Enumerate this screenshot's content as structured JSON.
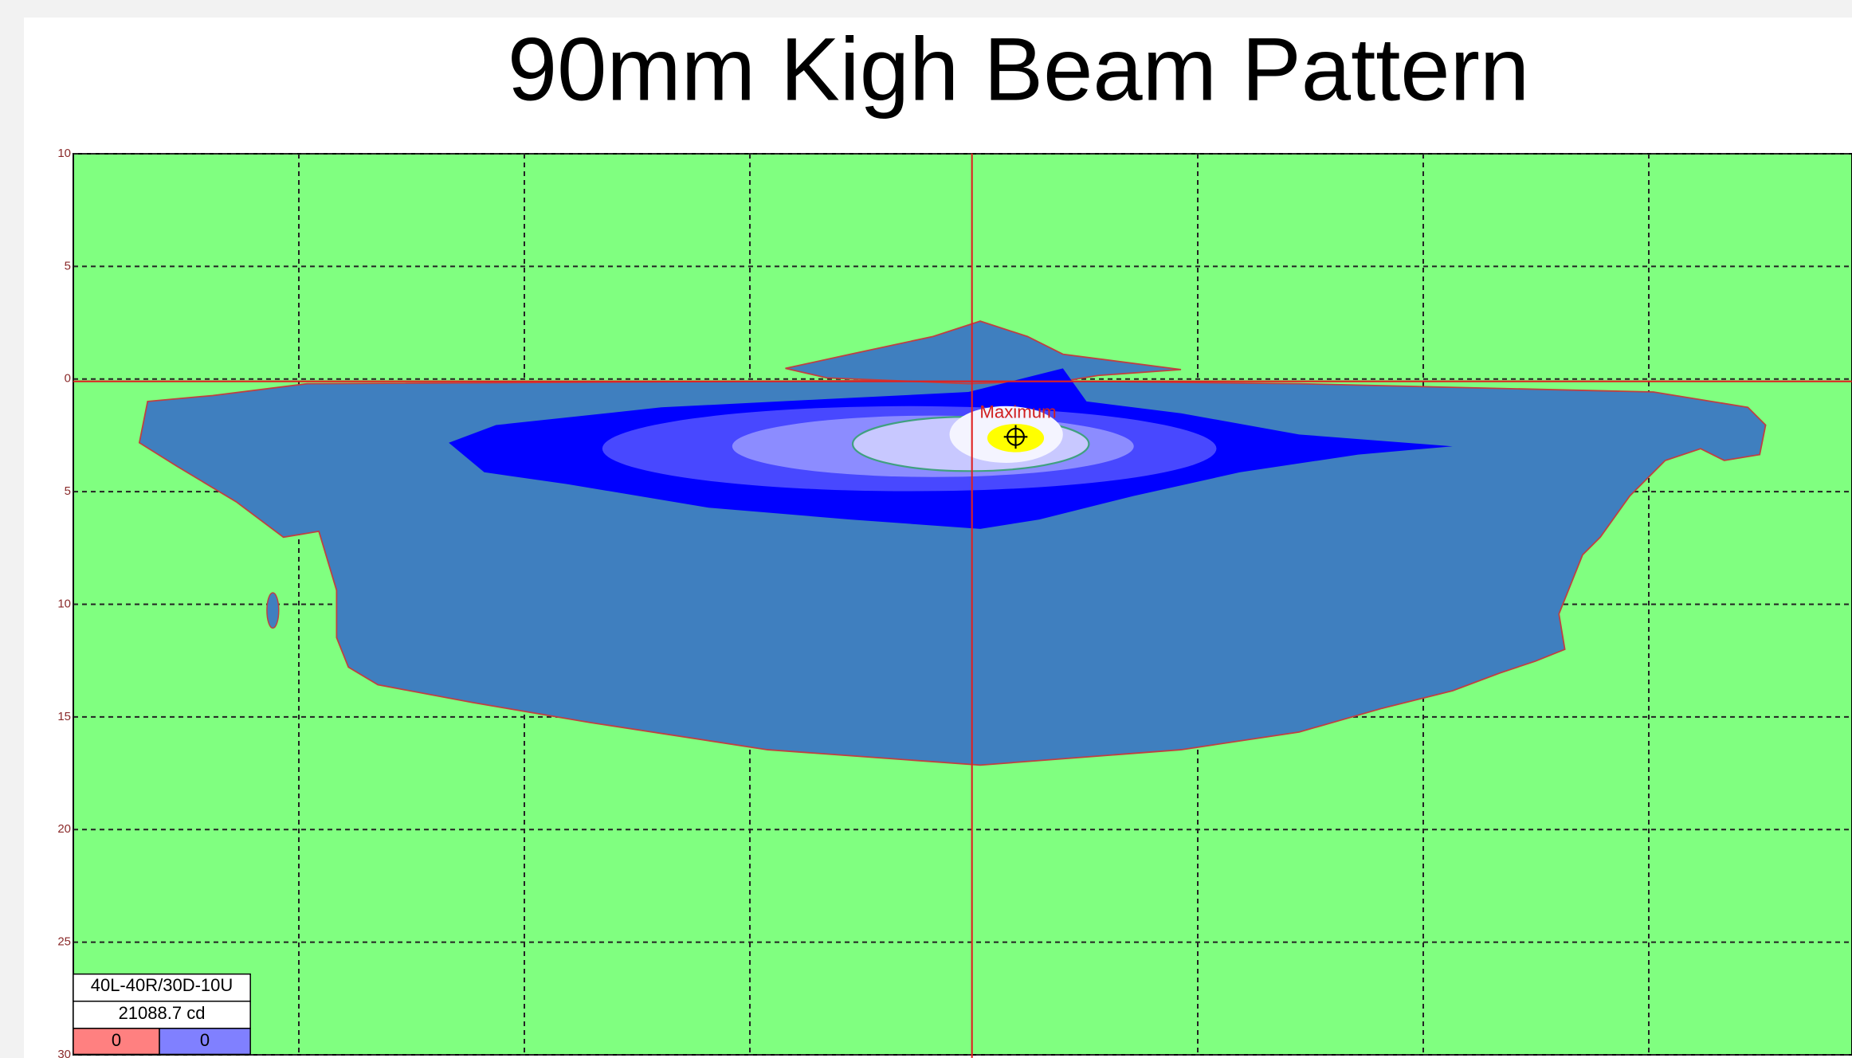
{
  "chart_data": {
    "type": "contour",
    "title": "90mm Kigh Beam Pattern",
    "ylim": [
      -30,
      10
    ],
    "yticks": [
      10,
      5,
      0,
      {
        "value": -5,
        "label": "5"
      },
      {
        "value": -10,
        "label": "10"
      },
      {
        "value": -15,
        "label": "15"
      },
      {
        "value": -20,
        "label": "20"
      },
      {
        "value": -25,
        "label": "25"
      },
      {
        "value": -30,
        "label": "30"
      }
    ],
    "grid": true,
    "annotation": "Maximum",
    "legend": {
      "range": "40L-40R/30D-10U",
      "maximum": "21088.7 cd",
      "below": 0,
      "above": 0
    }
  }
}
